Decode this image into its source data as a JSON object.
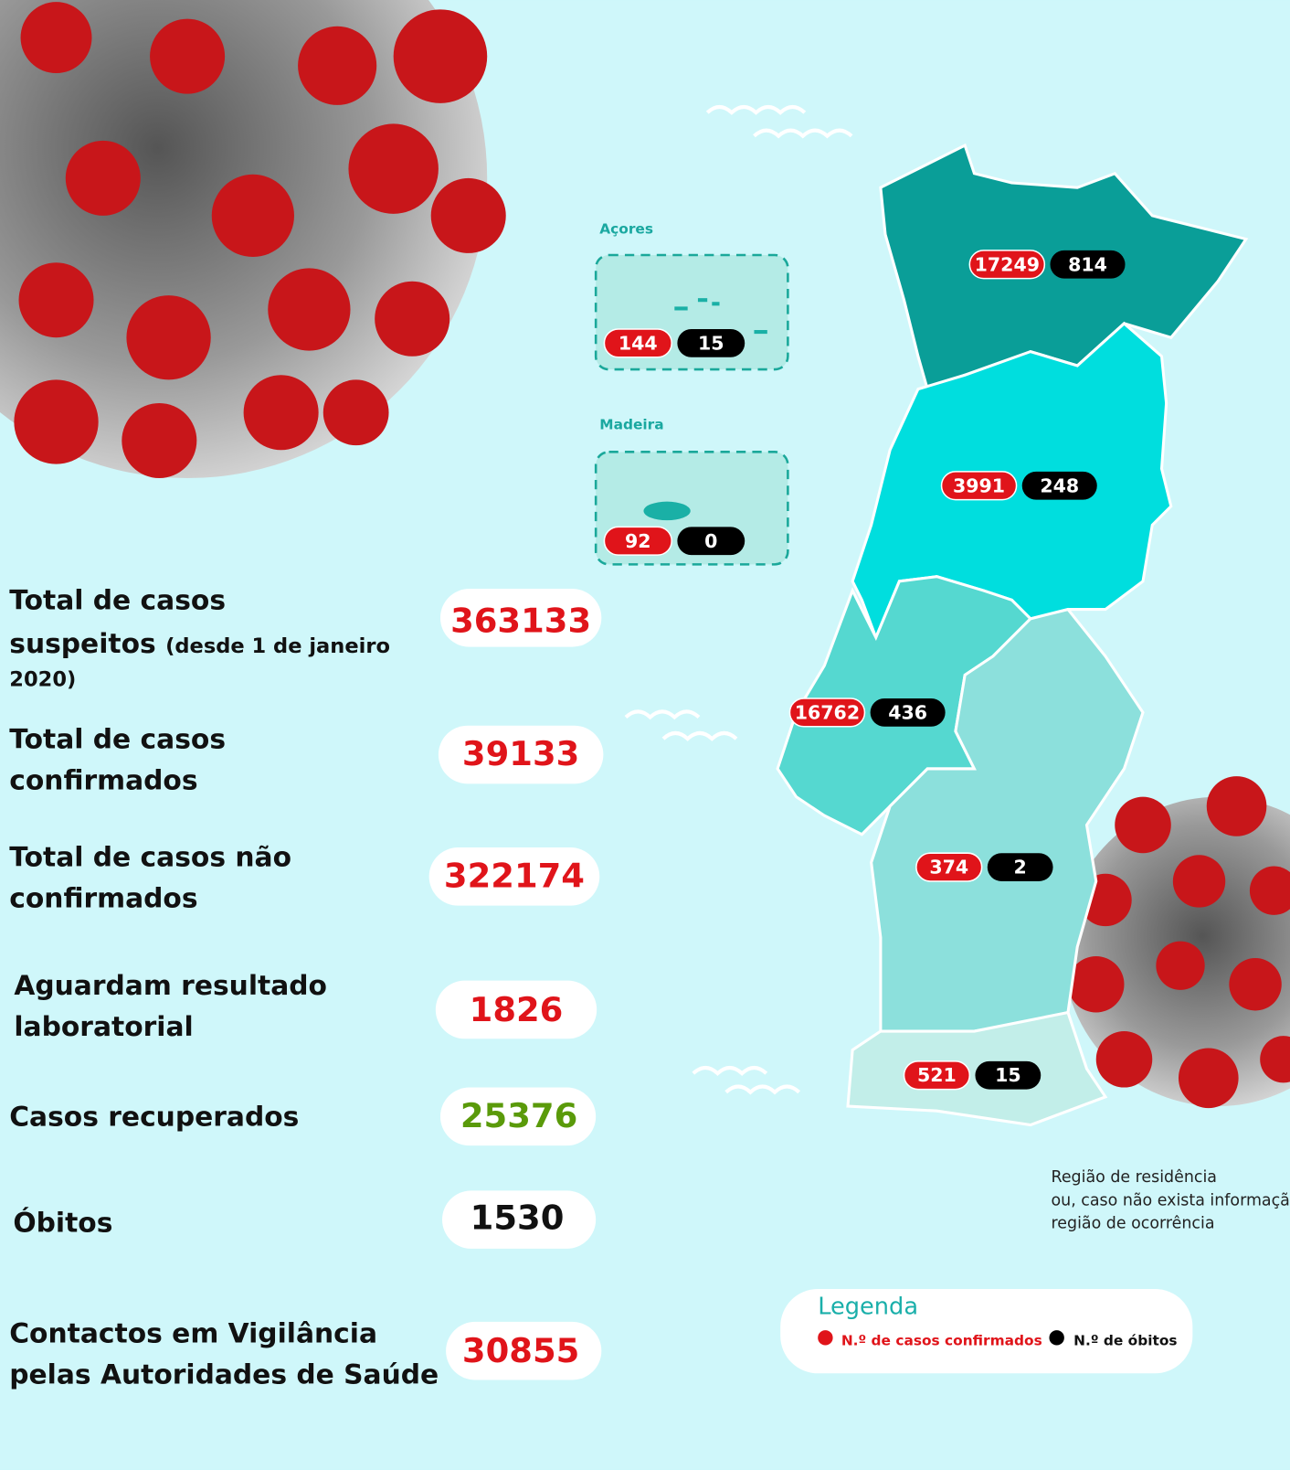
{
  "stats": [
    {
      "label": [
        "Total de casos",
        "suspeitos"
      ],
      "note": [
        "(desde 1 de janeiro",
        "2020)"
      ],
      "value": "363133"
    },
    {
      "label": [
        "Total de casos",
        "confirmados"
      ],
      "value": "39133"
    },
    {
      "label": [
        "Total de casos não",
        "confirmados"
      ],
      "value": "322174"
    },
    {
      "label": [
        "Aguardam resultado",
        "laboratorial"
      ],
      "value": "1826"
    },
    {
      "label": [
        "Casos recuperados"
      ],
      "value": "25376"
    },
    {
      "label": [
        "Óbitos"
      ],
      "value": "1530"
    },
    {
      "label": [
        "Contactos em Vigilância",
        "pelas Autoridades de Saúde"
      ],
      "value": "30855"
    }
  ],
  "map": {
    "azores": {
      "label": "Açores",
      "cases": "144",
      "deaths": "15"
    },
    "madeira": {
      "label": "Madeira",
      "cases": "92",
      "deaths": "0"
    },
    "regions": [
      {
        "cases": "17249",
        "deaths": "814"
      },
      {
        "cases": "3991",
        "deaths": "248"
      },
      {
        "cases": "16762",
        "deaths": "436"
      },
      {
        "cases": "374",
        "deaths": "2"
      },
      {
        "cases": "521",
        "deaths": "15"
      }
    ]
  },
  "note": [
    "Região de residência",
    "ou, caso não exista informação,",
    "região de ocorrência"
  ],
  "legend": {
    "title": "Legenda",
    "items": [
      "N.º de casos confirmados",
      "N.º de óbitos"
    ]
  }
}
